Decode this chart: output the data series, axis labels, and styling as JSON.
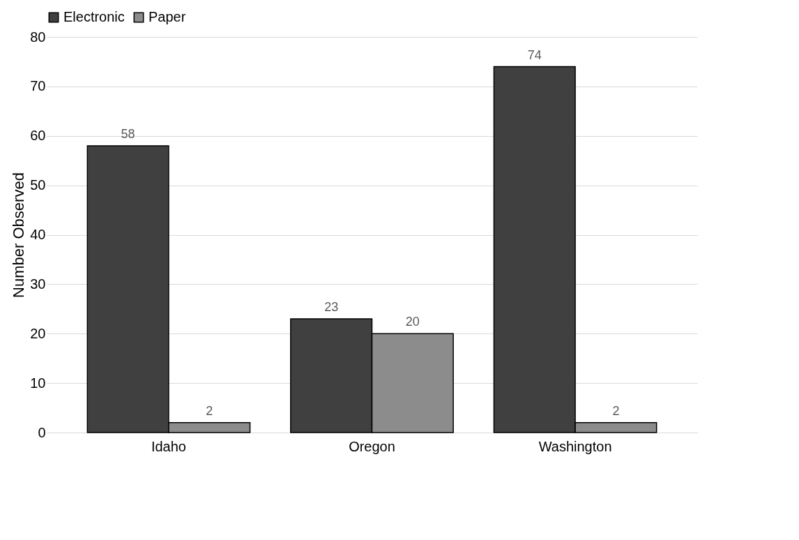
{
  "chart_data": {
    "type": "bar",
    "ylabel": "Number Observed",
    "categories": [
      "Idaho",
      "Oregon",
      "Washington"
    ],
    "series": [
      {
        "name": "Electronic",
        "color": "#404040",
        "values": [
          58,
          23,
          74
        ]
      },
      {
        "name": "Paper",
        "color": "#8c8c8c",
        "values": [
          2,
          20,
          2
        ]
      }
    ],
    "ylim": [
      0,
      80
    ],
    "yticks": [
      0,
      10,
      20,
      30,
      40,
      50,
      60,
      70,
      80
    ],
    "grid": "y",
    "legend": "top",
    "data_labels": true
  }
}
